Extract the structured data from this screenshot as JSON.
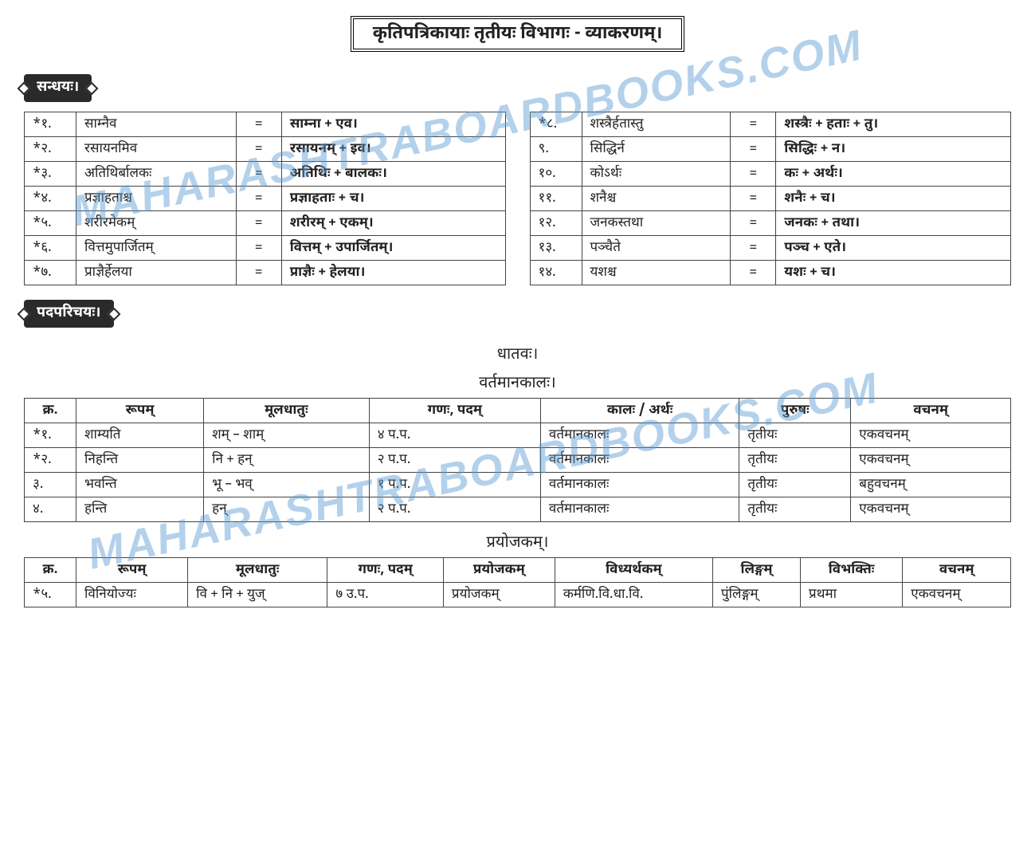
{
  "watermark_text": "MAHARASHTRABOARDBOOKS.COM",
  "title": "कृतिपत्रिकायाः तृतीयः विभागः  - व्याकरणम्।",
  "sections": {
    "sandhi_label": "सन्धयः।",
    "padaparichaya_label": "पदपरिचयः।",
    "dhatavah": "धातवः।",
    "vartamanakalah": "वर्तमानकालः।",
    "prayojakam": "प्रयोजकम्।"
  },
  "sandhi_left": [
    {
      "n": "*१.",
      "word": "साम्नैव",
      "split": "साम्ना + एव।"
    },
    {
      "n": "*२.",
      "word": "रसायनमिव",
      "split": "रसायनम् + इव।"
    },
    {
      "n": "*३.",
      "word": "अतिथिर्बालकः",
      "split": "अतिथिः + बालकः।"
    },
    {
      "n": "*४.",
      "word": "प्रज्ञाहताश्च",
      "split": "प्रज्ञाहताः + च।"
    },
    {
      "n": "*५.",
      "word": "शरीरमेकम्",
      "split": "शरीरम् + एकम्।"
    },
    {
      "n": "*६.",
      "word": "वित्तमुपार्जितम्",
      "split": "वित्तम् + उपार्जितम्।"
    },
    {
      "n": "*७.",
      "word": "प्राज्ञैर्हेलया",
      "split": "प्राज्ञैः + हेलया।"
    }
  ],
  "sandhi_right": [
    {
      "n": "*८.",
      "word": "शस्त्रैर्हतास्तु",
      "split": "शस्त्रैः + हताः + तु।"
    },
    {
      "n": "९.",
      "word": "सिद्धिर्न",
      "split": "सिद्धिः + न।"
    },
    {
      "n": "१०.",
      "word": "कोऽर्थः",
      "split": "कः + अर्थः।"
    },
    {
      "n": "११.",
      "word": "शनैश्च",
      "split": "शनैः + च।"
    },
    {
      "n": "१२.",
      "word": "जनकस्तथा",
      "split": "जनकः + तथा।"
    },
    {
      "n": "१३.",
      "word": "पञ्चैते",
      "split": "पञ्च + एते।"
    },
    {
      "n": "१४.",
      "word": "यशश्च",
      "split": "यशः + च।"
    }
  ],
  "verb_table": {
    "headers": [
      "क्र.",
      "रूपम्",
      "मूलधातुः",
      "गणः, पदम्",
      "कालः / अर्थः",
      "पुरुषः",
      "वचनम्"
    ],
    "rows": [
      [
        "*१.",
        "शाम्यति",
        "शम् – शाम्",
        "४ प.प.",
        "वर्तमानकालः",
        "तृतीयः",
        "एकवचनम्"
      ],
      [
        "*२.",
        "निहन्ति",
        "नि + हन्",
        "२ प.प.",
        "वर्तमानकालः",
        "तृतीयः",
        "एकवचनम्"
      ],
      [
        "३.",
        "भवन्ति",
        "भू – भव्",
        "१ प.प.",
        "वर्तमानकालः",
        "तृतीयः",
        "बहुवचनम्"
      ],
      [
        "४.",
        "हन्ति",
        "हन्",
        "२ प.प.",
        "वर्तमानकालः",
        "तृतीयः",
        "एकवचनम्"
      ]
    ]
  },
  "prayojak_table": {
    "headers": [
      "क्र.",
      "रूपम्",
      "मूलधातुः",
      "गणः, पदम्",
      "प्रयोजकम्",
      "विध्यर्थकम्",
      "लिङ्गम्",
      "विभक्तिः",
      "वचनम्"
    ],
    "rows": [
      [
        "*५.",
        "विनियोज्यः",
        "वि + नि + युज्",
        "७ उ.प.",
        "प्रयोजकम्",
        "कर्मणि.वि.धा.वि.",
        "पुंलिङ्गम्",
        "प्रथमा",
        "एकवचनम्"
      ]
    ]
  }
}
